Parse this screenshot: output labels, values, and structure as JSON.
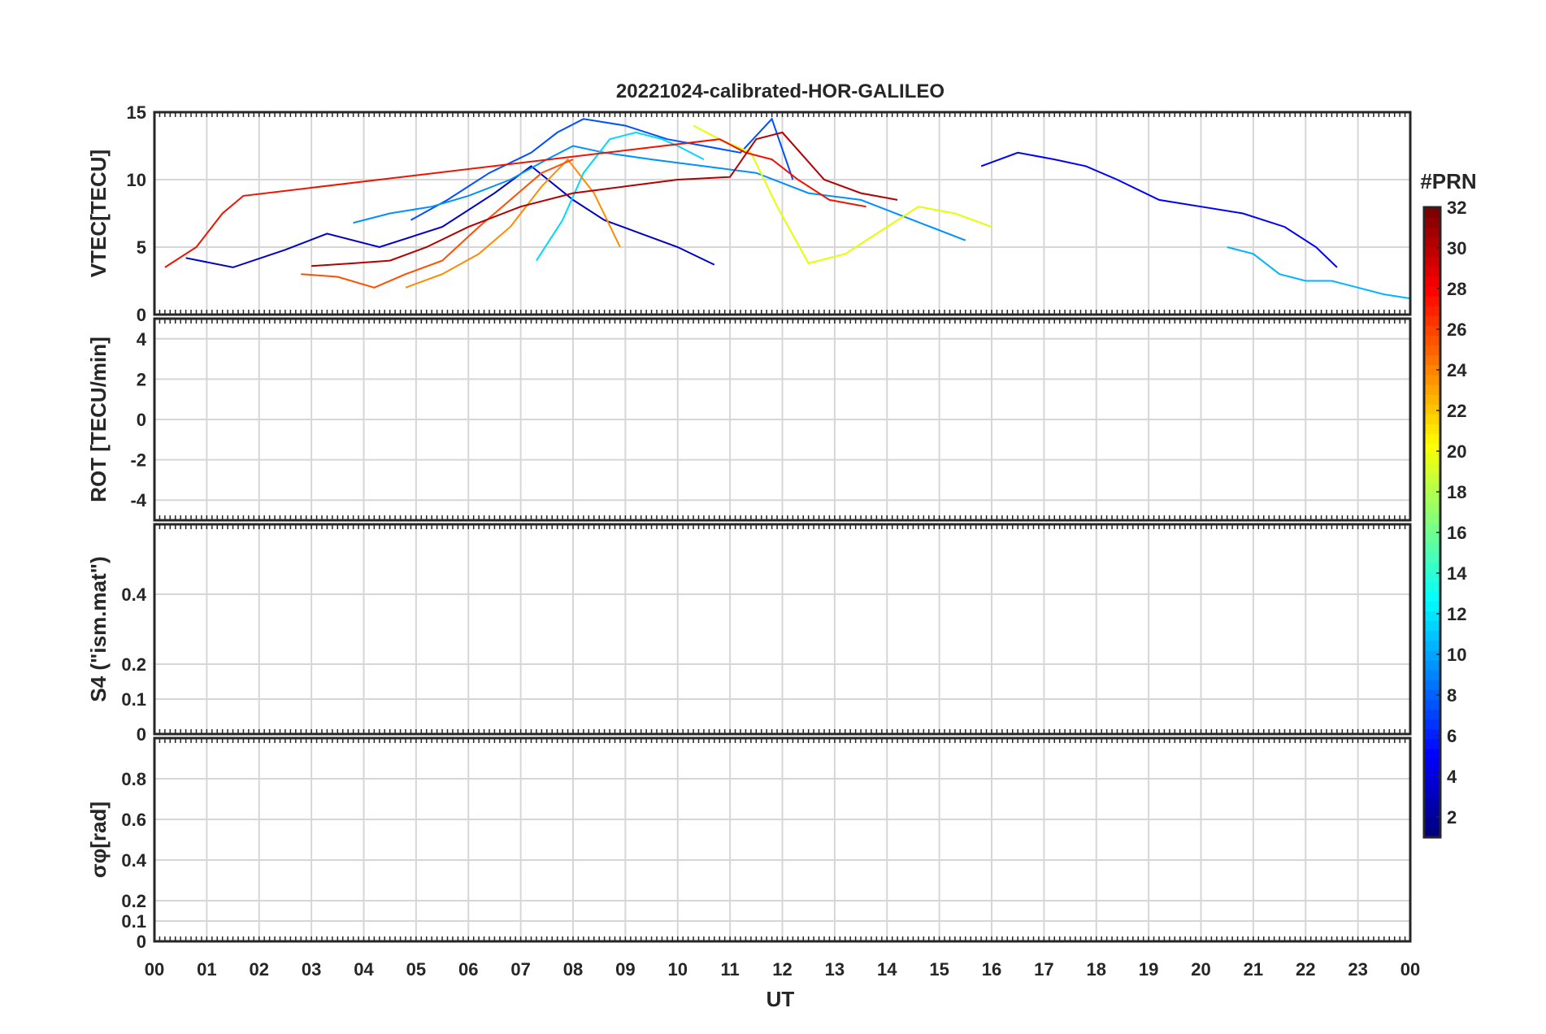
{
  "chart_data": {
    "type": "line",
    "title": "20221024-calibrated-HOR-GALILEO",
    "xlabel": "UT",
    "x_range_hours": [
      0,
      24
    ],
    "x_ticks": [
      "00",
      "01",
      "02",
      "03",
      "04",
      "05",
      "06",
      "07",
      "08",
      "09",
      "10",
      "11",
      "12",
      "13",
      "14",
      "15",
      "16",
      "17",
      "18",
      "19",
      "20",
      "21",
      "22",
      "23",
      "00"
    ],
    "grid": true,
    "colorbar": {
      "label": "#PRN",
      "range": [
        1,
        32
      ],
      "ticks": [
        "2",
        "4",
        "6",
        "8",
        "10",
        "12",
        "14",
        "16",
        "18",
        "20",
        "22",
        "24",
        "26",
        "28",
        "30",
        "32"
      ],
      "colormap": "jet"
    },
    "panels": [
      {
        "ylabel": "VTEC[TECU]",
        "ylim": [
          0,
          15
        ],
        "yticks": [
          "0",
          "5",
          "10",
          "15"
        ],
        "series": [
          {
            "prn": 2,
            "color": "#0000c8",
            "x": [
              0.6,
              1.5,
              2.5,
              3.3,
              4.3,
              5.5,
              6.5,
              7.2,
              8.0,
              8.6,
              9.3,
              10.0,
              10.7
            ],
            "y": [
              4.2,
              3.5,
              4.8,
              6.0,
              5.0,
              6.5,
              9.0,
              11.0,
              8.5,
              7.0,
              6.0,
              5.0,
              3.7
            ]
          },
          {
            "prn": 4,
            "color": "#0000ff",
            "x": [
              15.8,
              16.5,
              17.2,
              17.8,
              18.4,
              19.2,
              20.0,
              20.8,
              21.6,
              22.2,
              22.6
            ],
            "y": [
              11.0,
              12.0,
              11.5,
              11.0,
              10.0,
              8.5,
              8.0,
              7.5,
              6.5,
              5.0,
              3.5
            ]
          },
          {
            "prn": 6,
            "color": "#0050ff",
            "x": [
              4.9,
              5.6,
              6.4,
              7.2,
              7.7,
              8.2,
              9.0,
              9.8,
              10.5,
              11.2,
              11.8,
              12.2
            ],
            "y": [
              7.0,
              8.5,
              10.5,
              12.0,
              13.5,
              14.5,
              14.0,
              13.0,
              12.5,
              12.0,
              14.5,
              10.0
            ]
          },
          {
            "prn": 8,
            "color": "#0090ff",
            "x": [
              3.8,
              4.5,
              5.3,
              6.0,
              6.8,
              7.5,
              8.0,
              8.6,
              9.5,
              10.5,
              11.5,
              12.5,
              13.5,
              14.5,
              15.5
            ],
            "y": [
              6.8,
              7.5,
              8.0,
              8.8,
              10.0,
              11.5,
              12.5,
              12.0,
              11.5,
              11.0,
              10.5,
              9.0,
              8.5,
              7.0,
              5.5
            ]
          },
          {
            "prn": 10,
            "color": "#00b4ff",
            "x": [
              20.5,
              21.0,
              21.5,
              22.0,
              22.5,
              23.0,
              23.5,
              24.0
            ],
            "y": [
              5.0,
              4.5,
              3.0,
              2.5,
              2.5,
              2.0,
              1.5,
              1.2
            ]
          },
          {
            "prn": 12,
            "color": "#00d8ff",
            "x": [
              7.3,
              7.8,
              8.2,
              8.7,
              9.2,
              9.7,
              10.0,
              10.5
            ],
            "y": [
              4.0,
              7.0,
              10.5,
              13.0,
              13.5,
              13.0,
              12.5,
              11.5
            ]
          },
          {
            "prn": 20,
            "color": "#e4ff00",
            "x": [
              10.3,
              10.8,
              11.4,
              11.9,
              12.5,
              13.2,
              14.0,
              14.6,
              15.3,
              16.0
            ],
            "y": [
              14.0,
              13.0,
              12.0,
              8.0,
              3.8,
              4.5,
              6.5,
              8.0,
              7.5,
              6.5
            ]
          },
          {
            "prn": 23,
            "color": "#ff8c00",
            "x": [
              4.8,
              5.5,
              6.2,
              6.8,
              7.4,
              7.9,
              8.4,
              8.9
            ],
            "y": [
              2.0,
              3.0,
              4.5,
              6.5,
              9.5,
              11.5,
              9.0,
              5.0
            ]
          },
          {
            "prn": 26,
            "color": "#ff5000",
            "x": [
              2.8,
              3.5,
              4.2,
              4.8,
              5.5,
              6.2,
              6.8,
              7.4,
              8.0
            ],
            "y": [
              3.0,
              2.8,
              2.0,
              3.0,
              4.0,
              6.5,
              8.5,
              10.5,
              11.5
            ]
          },
          {
            "prn": 28,
            "color": "#f01400",
            "x": [
              0.2,
              0.8,
              1.3,
              1.7,
              10.8,
              11.3,
              11.8,
              12.3,
              12.9,
              13.6
            ],
            "y": [
              3.5,
              5.0,
              7.5,
              8.8,
              13.0,
              12.0,
              11.5,
              10.0,
              8.5,
              8.0
            ]
          },
          {
            "prn": 31,
            "color": "#b40000",
            "x": [
              3.0,
              3.8,
              4.5,
              5.2,
              6.0,
              7.0,
              8.0,
              9.0,
              10.0,
              11.0,
              11.5,
              12.0,
              12.8,
              13.5,
              14.2
            ],
            "y": [
              3.6,
              3.8,
              4.0,
              5.0,
              6.5,
              8.0,
              9.0,
              9.5,
              10.0,
              10.2,
              13.0,
              13.5,
              10.0,
              9.0,
              8.5
            ]
          }
        ]
      },
      {
        "ylabel": "ROT [TECU/min]",
        "ylim": [
          -5,
          5
        ],
        "yticks": [
          "-4",
          "-2",
          "0",
          "2",
          "4"
        ]
      },
      {
        "ylabel": "S4 (\"ism.mat\")",
        "ylim": [
          0,
          0.6
        ],
        "yticks": [
          "0",
          "0.1",
          "0.2",
          "0.4"
        ]
      },
      {
        "ylabel": "σφ[rad]",
        "ylim": [
          0,
          1
        ],
        "yticks": [
          "0",
          "0.1",
          "0.2",
          "0.4",
          "0.6",
          "0.8"
        ]
      }
    ]
  }
}
